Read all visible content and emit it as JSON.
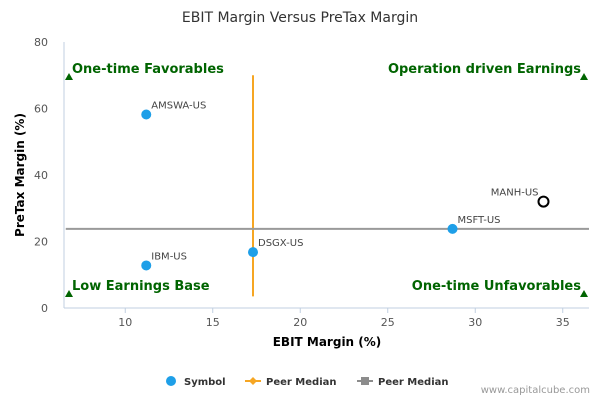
{
  "chart_data": {
    "type": "scatter",
    "title": "EBIT Margin Versus PreTax Margin",
    "xlabel": "EBIT Margin (%)",
    "ylabel": "PreTax Margin (%)",
    "xlim": [
      6.5,
      36.5
    ],
    "ylim": [
      0,
      80
    ],
    "x_ticks": [
      10,
      15,
      20,
      25,
      30,
      35
    ],
    "y_ticks": [
      0,
      20,
      40,
      60,
      80
    ],
    "grid": false,
    "legend_position": "bottom",
    "points": [
      {
        "label": "AMSWA-US",
        "x": 11.2,
        "y": 58.2,
        "style": "filled"
      },
      {
        "label": "IBM-US",
        "x": 11.2,
        "y": 12.8,
        "style": "filled"
      },
      {
        "label": "DSGX-US",
        "x": 17.3,
        "y": 16.8,
        "style": "filled"
      },
      {
        "label": "MSFT-US",
        "x": 28.7,
        "y": 23.8,
        "style": "filled"
      },
      {
        "label": "MANH-US",
        "x": 33.9,
        "y": 32.0,
        "style": "hollow"
      }
    ],
    "peer_median_x": 17.3,
    "peer_median_y": 23.8,
    "quadrants": {
      "top_left": "One-time Favorables",
      "top_right": "Operation driven Earnings",
      "bottom_left": "Low Earnings Base",
      "bottom_right": "One-time Unfavorables"
    },
    "legend": [
      {
        "label": "Symbol",
        "marker": "circle",
        "color": "#1e9fe8"
      },
      {
        "label": "Peer Median",
        "marker": "diamond",
        "color": "#f6a623"
      },
      {
        "label": "Peer Median",
        "marker": "square",
        "color": "#8c8c8c"
      }
    ],
    "colors": {
      "point": "#1e9fe8",
      "median_x": "#f6a623",
      "median_y": "#9a9a9a",
      "quadrant_text": "#006400",
      "axis": "#c0cfe0"
    }
  },
  "footer": {
    "credit": "www.capitalcube.com"
  }
}
